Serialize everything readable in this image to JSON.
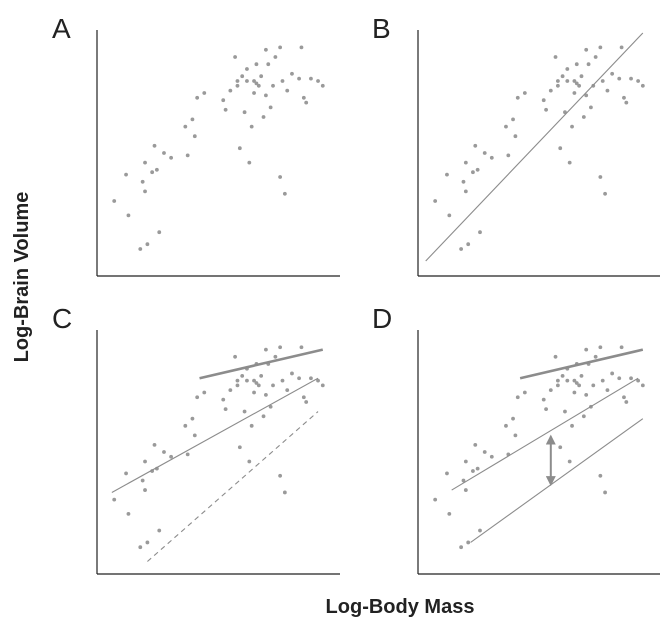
{
  "chart_data": {
    "type": "scatter",
    "xlabel": "Log-Body Mass",
    "ylabel": "Log-Brain Volume",
    "xlim": [
      0,
      10
    ],
    "ylim": [
      0,
      10
    ],
    "grid": false,
    "point_color": "#9a9a9a",
    "line_color": "#8c8c8c",
    "points": [
      [
        0.6,
        3.0
      ],
      [
        1.2,
        2.4
      ],
      [
        1.7,
        1.0
      ],
      [
        2.0,
        1.2
      ],
      [
        2.5,
        1.7
      ],
      [
        1.9,
        3.4
      ],
      [
        1.8,
        3.8
      ],
      [
        2.2,
        4.2
      ],
      [
        1.9,
        4.6
      ],
      [
        2.3,
        5.3
      ],
      [
        2.7,
        5.0
      ],
      [
        3.0,
        4.8
      ],
      [
        3.7,
        4.9
      ],
      [
        4.0,
        5.7
      ],
      [
        3.6,
        6.1
      ],
      [
        3.9,
        6.4
      ],
      [
        4.1,
        7.3
      ],
      [
        4.4,
        7.5
      ],
      [
        5.3,
        6.8
      ],
      [
        5.2,
        7.2
      ],
      [
        5.5,
        7.6
      ],
      [
        5.8,
        7.8
      ],
      [
        6.0,
        8.2
      ],
      [
        6.2,
        8.5
      ],
      [
        5.7,
        9.0
      ],
      [
        5.8,
        8.0
      ],
      [
        6.2,
        8.0
      ],
      [
        6.1,
        6.7
      ],
      [
        6.4,
        6.1
      ],
      [
        5.9,
        5.2
      ],
      [
        6.3,
        4.6
      ],
      [
        6.9,
        6.5
      ],
      [
        7.0,
        7.4
      ],
      [
        7.3,
        7.8
      ],
      [
        7.2,
        6.9
      ],
      [
        6.7,
        7.8
      ],
      [
        6.5,
        8.0
      ],
      [
        6.8,
        8.2
      ],
      [
        7.1,
        8.7
      ],
      [
        7.4,
        9.0
      ],
      [
        7.6,
        9.4
      ],
      [
        7.0,
        9.3
      ],
      [
        6.6,
        8.7
      ],
      [
        7.7,
        8.0
      ],
      [
        7.9,
        7.6
      ],
      [
        8.1,
        8.3
      ],
      [
        8.4,
        8.1
      ],
      [
        8.6,
        7.3
      ],
      [
        8.7,
        7.1
      ],
      [
        8.5,
        9.4
      ],
      [
        8.9,
        8.1
      ],
      [
        9.2,
        8.0
      ],
      [
        9.4,
        7.8
      ],
      [
        7.8,
        3.3
      ],
      [
        7.6,
        4.0
      ],
      [
        2.4,
        4.3
      ],
      [
        1.1,
        4.1
      ],
      [
        6.6,
        7.9
      ],
      [
        6.5,
        7.5
      ]
    ],
    "panels": [
      {
        "letter": "A",
        "lines": []
      },
      {
        "letter": "B",
        "lines": [
          {
            "x": [
              0.2,
              9.4
            ],
            "y": [
              0.5,
              10.0
            ],
            "style": "solid",
            "weight": "thin"
          }
        ]
      },
      {
        "letter": "C",
        "lines": [
          {
            "x": [
              0.5,
              9.2
            ],
            "y": [
              3.3,
              8.1
            ],
            "style": "solid",
            "weight": "thin"
          },
          {
            "x": [
              2.0,
              9.2
            ],
            "y": [
              0.4,
              6.7
            ],
            "style": "dashed",
            "weight": "thin"
          },
          {
            "x": [
              4.2,
              9.4
            ],
            "y": [
              8.1,
              9.3
            ],
            "style": "solid",
            "weight": "thick"
          }
        ]
      },
      {
        "letter": "D",
        "lines": [
          {
            "x": [
              1.3,
              9.2
            ],
            "y": [
              3.4,
              8.1
            ],
            "style": "solid",
            "weight": "thin"
          },
          {
            "x": [
              2.1,
              9.4
            ],
            "y": [
              1.2,
              6.4
            ],
            "style": "solid",
            "weight": "thin"
          },
          {
            "x": [
              4.2,
              9.4
            ],
            "y": [
              8.1,
              9.3
            ],
            "style": "solid",
            "weight": "thick"
          }
        ],
        "arrow": {
          "x": 5.5,
          "y": [
            5.9,
            3.4
          ]
        }
      }
    ]
  }
}
